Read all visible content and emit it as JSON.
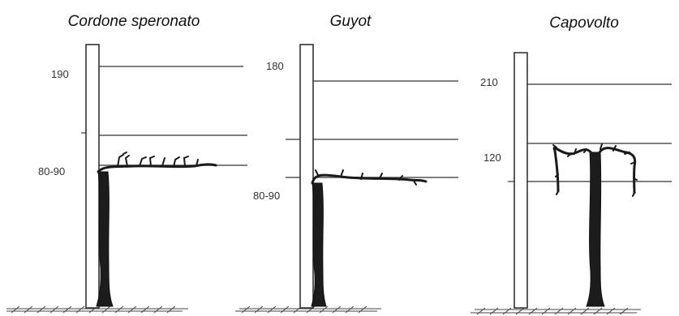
{
  "panels": [
    {
      "id": "cordone",
      "title": "Cordone speronato",
      "heights": [
        "190",
        "80-90"
      ]
    },
    {
      "id": "guyot",
      "title": "Guyot",
      "heights": [
        "180",
        "80-90"
      ]
    },
    {
      "id": "capovolto",
      "title": "Capovolto",
      "heights": [
        "210",
        "120"
      ]
    }
  ]
}
